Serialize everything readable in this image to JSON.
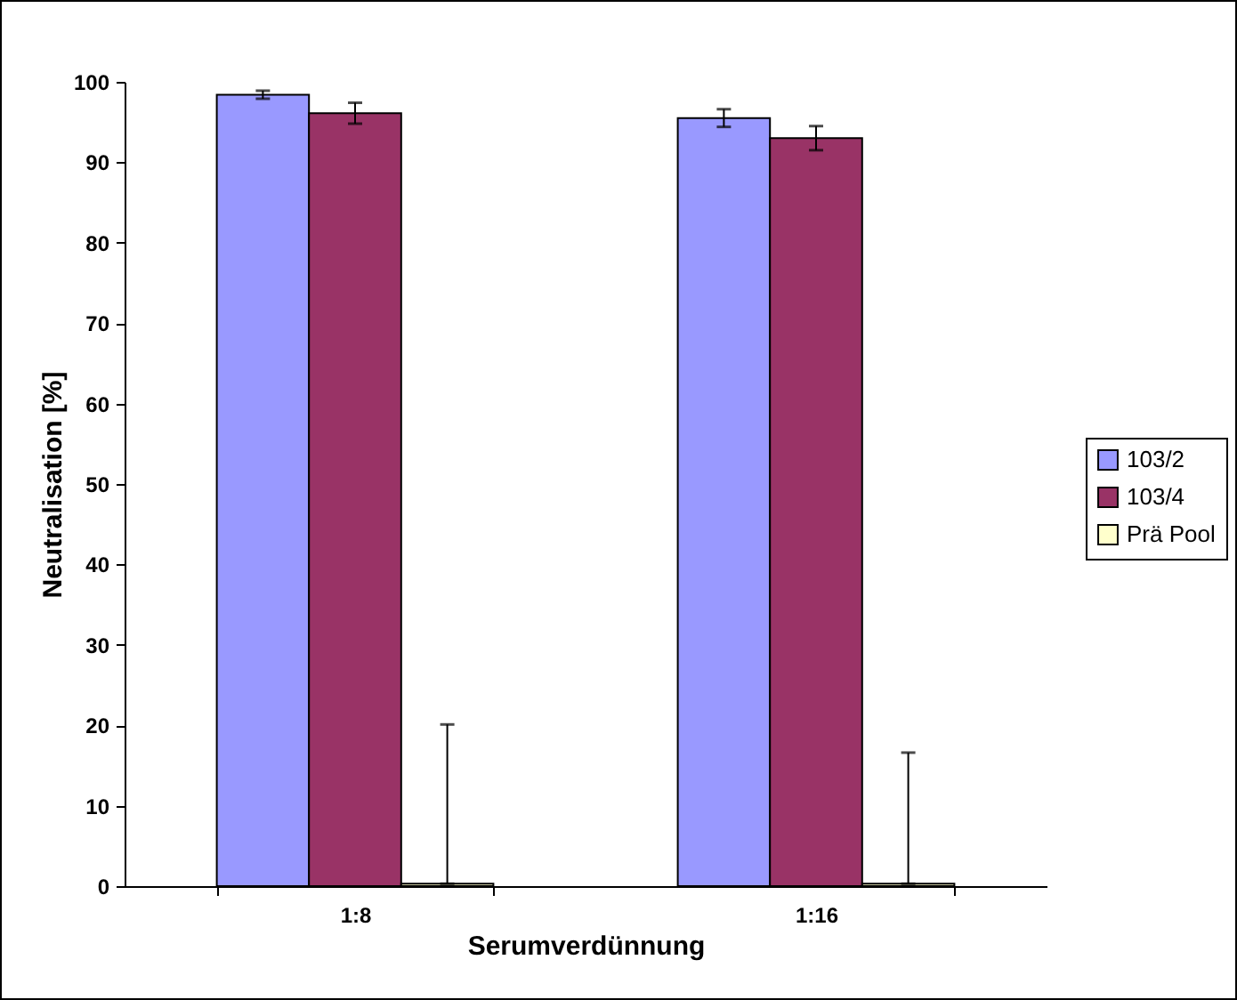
{
  "chart_data": {
    "type": "bar",
    "xlabel": "Serumverdünnung",
    "ylabel": "Neutralisation [%]",
    "categories": [
      "1:8",
      "1:16"
    ],
    "series": [
      {
        "name": "103/2",
        "color": "#9999ff",
        "values": [
          98.4,
          95.5
        ],
        "errors": [
          0.5,
          1.1
        ]
      },
      {
        "name": "103/4",
        "color": "#993366",
        "values": [
          96.1,
          93.0
        ],
        "errors": [
          1.3,
          1.5
        ]
      },
      {
        "name": "Prä Pool",
        "color": "#ffffcc",
        "values": [
          0.3,
          0.3
        ],
        "errors": [
          [
            0.3,
            20.1
          ],
          [
            0.3,
            16.6
          ]
        ]
      }
    ],
    "ylim": [
      0,
      100
    ],
    "yticks": [
      0,
      10,
      20,
      30,
      40,
      50,
      60,
      70,
      80,
      90,
      100
    ],
    "legend": "right",
    "grid": false
  }
}
